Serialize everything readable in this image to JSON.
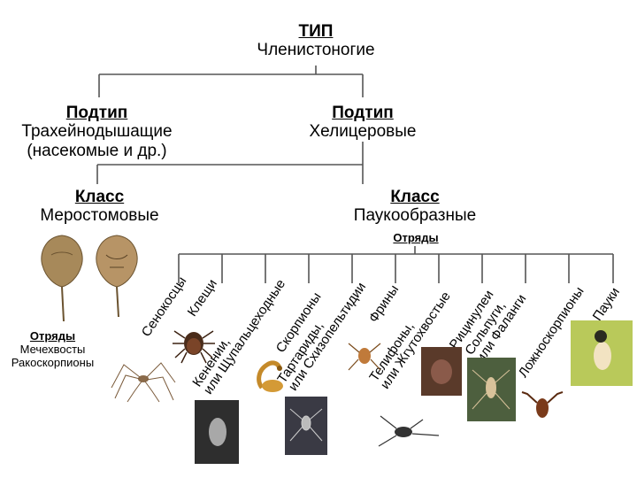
{
  "root": {
    "heading": "ТИП",
    "name": "Членистоногие"
  },
  "subtypes": [
    {
      "heading": "Подтип",
      "name": "Трахейнодышащие",
      "note": "(насекомые и др.)"
    },
    {
      "heading": "Подтип",
      "name": "Хелицеровые"
    }
  ],
  "classes": [
    {
      "heading": "Класс",
      "name": "Меростомовые"
    },
    {
      "heading": "Класс",
      "name": "Паукообразные",
      "orders_heading": "Отряды"
    }
  ],
  "merostomata_orders": {
    "heading": "Отряды",
    "items": [
      "Мечехвосты",
      "Ракоскорпионы"
    ]
  },
  "arachnid_orders": [
    {
      "line1": "Сенокосцы",
      "line2": ""
    },
    {
      "line1": "Клещи",
      "line2": ""
    },
    {
      "line1": "Кенении,",
      "line2": "или Щупальцеходные"
    },
    {
      "line1": "Скорпионы",
      "line2": ""
    },
    {
      "line1": "Тартариды,",
      "line2": "или Схизопельтидии"
    },
    {
      "line1": "Фрины",
      "line2": ""
    },
    {
      "line1": "Телифоны,",
      "line2": "или Жгутохвостые"
    },
    {
      "line1": "Рицинулеи",
      "line2": ""
    },
    {
      "line1": "Сольпуги,",
      "line2": "или Фаланги"
    },
    {
      "line1": "Ложноскорпионы",
      "line2": ""
    },
    {
      "line1": "Пауки",
      "line2": ""
    }
  ],
  "colors": {
    "line": "#555555"
  },
  "icons": [
    "horseshoe-crab-icon",
    "harvestman-icon",
    "tick-icon",
    "scorpion-icon",
    "spider-icon",
    "solifuge-icon",
    "pseudoscorpion-icon"
  ]
}
